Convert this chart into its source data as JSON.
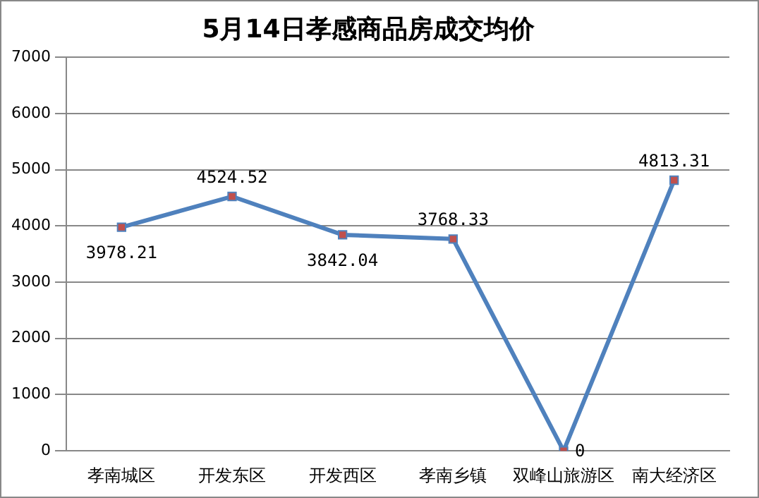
{
  "chart_data": {
    "type": "line",
    "title": "5月14日孝感商品房成交均价",
    "categories": [
      "孝南城区",
      "开发东区",
      "开发西区",
      "孝南乡镇",
      "双峰山旅游区",
      "南大经济区"
    ],
    "series": [
      {
        "color": "#4f81bd",
        "values": [
          3978.21,
          4524.52,
          3842.04,
          3768.33,
          0,
          4813.31
        ]
      }
    ],
    "ylim": [
      0,
      7000
    ],
    "yticks": [
      0,
      1000,
      2000,
      3000,
      4000,
      5000,
      6000,
      7000
    ],
    "grid": "y",
    "legend": false,
    "marker": "square",
    "line_style": "solid",
    "data_labels": true
  }
}
